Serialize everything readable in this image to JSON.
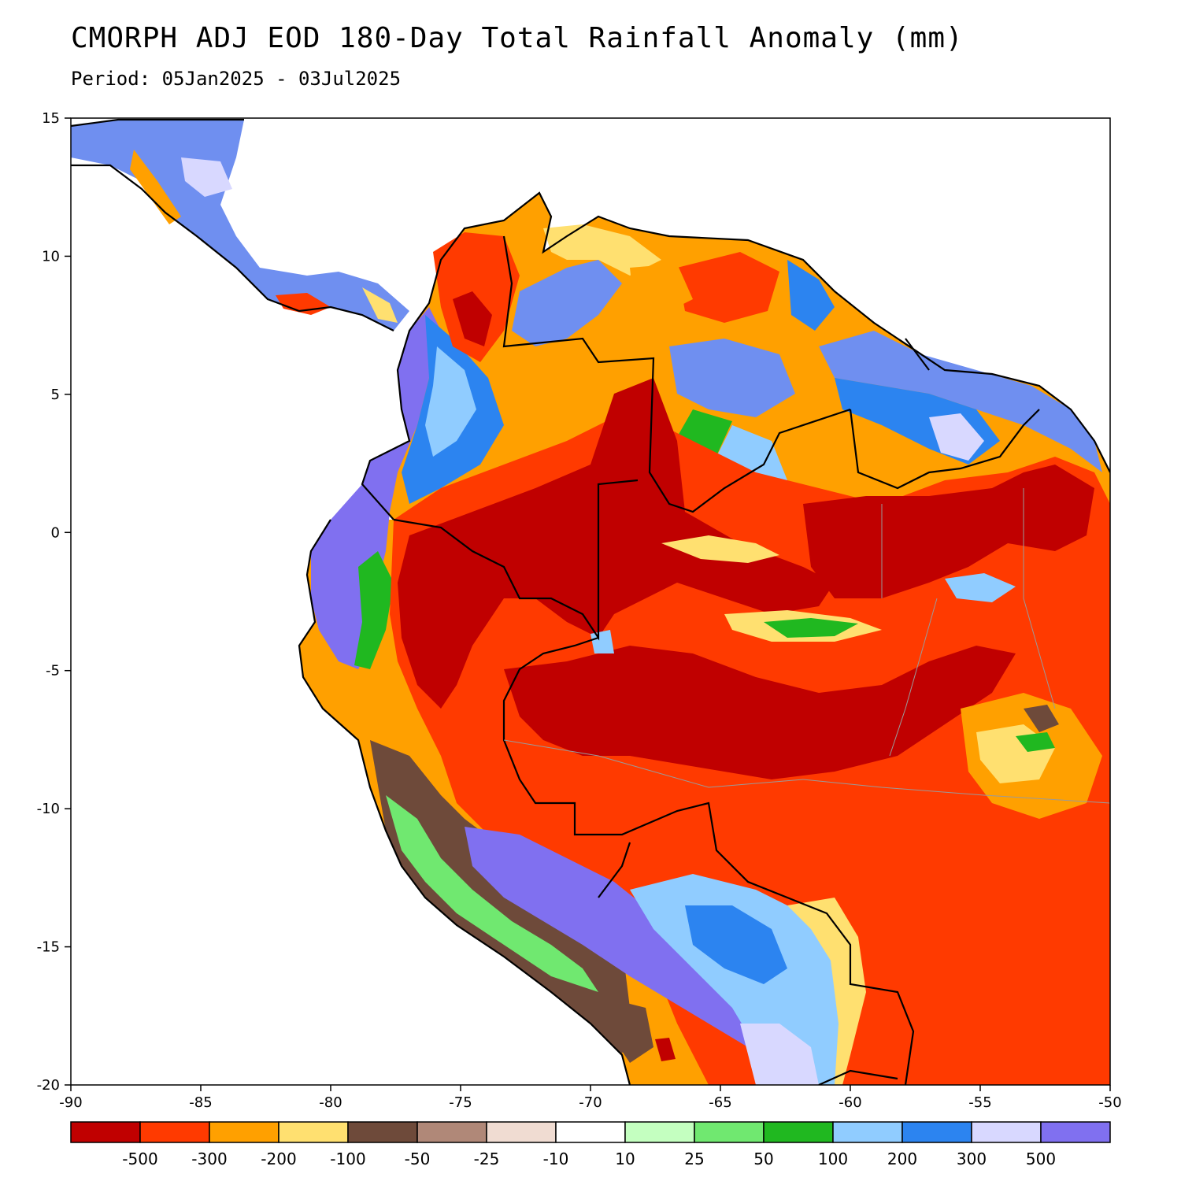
{
  "title": "CMORPH ADJ EOD 180-Day Total Rainfall Anomaly (mm)",
  "subtitle": "Period: 05Jan2025 - 03Jul2025",
  "map": {
    "lon_range": [
      -90,
      -50
    ],
    "lat_range": [
      -20,
      15
    ],
    "x_ticks": [
      "-90",
      "-85",
      "-80",
      "-75",
      "-70",
      "-65",
      "-60",
      "-55",
      "-50"
    ],
    "y_ticks": [
      "15",
      "10",
      "5",
      "0",
      "-5",
      "-10",
      "-15",
      "-20"
    ],
    "ocean_color": "#ffffff",
    "border_color": "#000000"
  },
  "legend": {
    "colors": [
      "#c00000",
      "#ff3a00",
      "#ffa000",
      "#ffe070",
      "#6e4a3a",
      "#b08878",
      "#f0dcd2",
      "#ffffff",
      "#c4ffc0",
      "#70e870",
      "#20b820",
      "#90ccff",
      "#2c84f0",
      "#d8d8ff",
      "#8070f0"
    ],
    "labels": [
      "-500",
      "-300",
      "-200",
      "-100",
      "-50",
      "-25",
      "-10",
      "10",
      "25",
      "50",
      "100",
      "200",
      "300",
      "500"
    ]
  }
}
